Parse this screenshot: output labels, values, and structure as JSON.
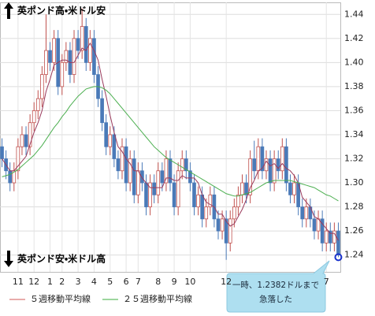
{
  "chart_data": {
    "type": "candlestick",
    "annotation_top": "英ポンド高・米ドル安",
    "annotation_bottom": "英ポンド安・米ドル高",
    "callout": [
      "一時、1.2382ドルまで",
      "急落した"
    ],
    "up_color": "#c0504d",
    "down_color": "#4a7ab8",
    "open": [
      1.33,
      1.32,
      1.31,
      1.3,
      1.31,
      1.33,
      1.34,
      1.33,
      1.35,
      1.36,
      1.37,
      1.39,
      1.41,
      1.4,
      1.42,
      1.38,
      1.4,
      1.41,
      1.39,
      1.42,
      1.41,
      1.43,
      1.4,
      1.42,
      1.39,
      1.37,
      1.35,
      1.33,
      1.34,
      1.32,
      1.31,
      1.33,
      1.3,
      1.32,
      1.29,
      1.31,
      1.3,
      1.28,
      1.3,
      1.29,
      1.31,
      1.3,
      1.32,
      1.3,
      1.28,
      1.31,
      1.32,
      1.31,
      1.3,
      1.28,
      1.29,
      1.27,
      1.28,
      1.29,
      1.27,
      1.26,
      1.27,
      1.25,
      1.27,
      1.28,
      1.29,
      1.3,
      1.29,
      1.32,
      1.31,
      1.33,
      1.31,
      1.32,
      1.3,
      1.32,
      1.31,
      1.33,
      1.3,
      1.29,
      1.3,
      1.28,
      1.27,
      1.28,
      1.27,
      1.26,
      1.27,
      1.25,
      1.26,
      1.25,
      1.26
    ],
    "high": [
      1.337,
      1.327,
      1.317,
      1.317,
      1.337,
      1.347,
      1.347,
      1.357,
      1.367,
      1.377,
      1.397,
      1.44,
      1.417,
      1.427,
      1.427,
      1.407,
      1.417,
      1.417,
      1.427,
      1.427,
      1.445,
      1.437,
      1.427,
      1.427,
      1.397,
      1.377,
      1.357,
      1.347,
      1.347,
      1.327,
      1.337,
      1.337,
      1.327,
      1.327,
      1.317,
      1.317,
      1.307,
      1.307,
      1.307,
      1.317,
      1.317,
      1.327,
      1.327,
      1.307,
      1.317,
      1.327,
      1.327,
      1.317,
      1.307,
      1.297,
      1.297,
      1.287,
      1.297,
      1.297,
      1.277,
      1.277,
      1.277,
      1.277,
      1.287,
      1.297,
      1.307,
      1.307,
      1.327,
      1.335,
      1.337,
      1.337,
      1.327,
      1.327,
      1.327,
      1.327,
      1.337,
      1.337,
      1.307,
      1.307,
      1.307,
      1.287,
      1.287,
      1.287,
      1.277,
      1.277,
      1.277,
      1.267,
      1.267,
      1.267,
      1.267
    ],
    "low": [
      1.313,
      1.303,
      1.293,
      1.293,
      1.303,
      1.323,
      1.323,
      1.323,
      1.343,
      1.353,
      1.363,
      1.383,
      1.393,
      1.393,
      1.373,
      1.373,
      1.393,
      1.383,
      1.383,
      1.403,
      1.403,
      1.393,
      1.393,
      1.383,
      1.363,
      1.343,
      1.323,
      1.323,
      1.313,
      1.303,
      1.303,
      1.293,
      1.293,
      1.283,
      1.283,
      1.293,
      1.273,
      1.273,
      1.283,
      1.283,
      1.293,
      1.293,
      1.293,
      1.273,
      1.273,
      1.303,
      1.303,
      1.293,
      1.273,
      1.273,
      1.263,
      1.263,
      1.273,
      1.263,
      1.253,
      1.253,
      1.236,
      1.243,
      1.263,
      1.273,
      1.283,
      1.283,
      1.283,
      1.303,
      1.303,
      1.303,
      1.303,
      1.293,
      1.293,
      1.303,
      1.303,
      1.293,
      1.283,
      1.283,
      1.273,
      1.263,
      1.263,
      1.263,
      1.253,
      1.253,
      1.243,
      1.243,
      1.243,
      1.243,
      1.2382
    ],
    "close": [
      1.32,
      1.31,
      1.3,
      1.31,
      1.33,
      1.34,
      1.33,
      1.35,
      1.36,
      1.37,
      1.39,
      1.41,
      1.4,
      1.42,
      1.38,
      1.4,
      1.41,
      1.39,
      1.42,
      1.41,
      1.43,
      1.4,
      1.42,
      1.39,
      1.37,
      1.35,
      1.33,
      1.34,
      1.32,
      1.31,
      1.33,
      1.3,
      1.32,
      1.29,
      1.31,
      1.3,
      1.28,
      1.3,
      1.29,
      1.31,
      1.3,
      1.32,
      1.3,
      1.28,
      1.31,
      1.32,
      1.31,
      1.3,
      1.28,
      1.29,
      1.27,
      1.28,
      1.29,
      1.27,
      1.26,
      1.27,
      1.25,
      1.27,
      1.28,
      1.29,
      1.3,
      1.29,
      1.32,
      1.31,
      1.33,
      1.31,
      1.32,
      1.3,
      1.32,
      1.31,
      1.33,
      1.3,
      1.29,
      1.3,
      1.28,
      1.27,
      1.28,
      1.27,
      1.26,
      1.27,
      1.25,
      1.26,
      1.25,
      1.26,
      1.24
    ],
    "series": [
      {
        "name": "５週移動平均線",
        "color": "#9a3a5c",
        "legend_color": "#e0908f",
        "values": [
          1.32,
          1.315,
          1.31,
          1.31,
          1.314,
          1.318,
          1.322,
          1.332,
          1.342,
          1.35,
          1.36,
          1.376,
          1.386,
          1.398,
          1.4,
          1.402,
          1.402,
          1.4,
          1.4,
          1.406,
          1.412,
          1.41,
          1.416,
          1.41,
          1.402,
          1.386,
          1.372,
          1.356,
          1.342,
          1.33,
          1.326,
          1.32,
          1.316,
          1.31,
          1.31,
          1.304,
          1.3,
          1.296,
          1.296,
          1.296,
          1.296,
          1.304,
          1.304,
          1.302,
          1.302,
          1.306,
          1.304,
          1.304,
          1.304,
          1.3,
          1.29,
          1.284,
          1.282,
          1.28,
          1.274,
          1.274,
          1.268,
          1.264,
          1.266,
          1.272,
          1.278,
          1.286,
          1.296,
          1.302,
          1.31,
          1.312,
          1.318,
          1.314,
          1.316,
          1.312,
          1.316,
          1.312,
          1.31,
          1.306,
          1.3,
          1.288,
          1.284,
          1.28,
          1.272,
          1.27,
          1.266,
          1.262,
          1.258,
          1.258,
          1.252
        ]
      },
      {
        "name": "２５週移動平均線",
        "color": "#4caf50",
        "legend_color": "#7dc87f",
        "values": [
          1.305,
          1.306,
          1.307,
          1.309,
          1.311,
          1.314,
          1.317,
          1.32,
          1.323,
          1.327,
          1.331,
          1.336,
          1.341,
          1.346,
          1.35,
          1.355,
          1.359,
          1.364,
          1.368,
          1.372,
          1.375,
          1.378,
          1.379,
          1.38,
          1.38,
          1.379,
          1.377,
          1.374,
          1.37,
          1.366,
          1.362,
          1.358,
          1.354,
          1.35,
          1.346,
          1.342,
          1.338,
          1.334,
          1.33,
          1.327,
          1.324,
          1.321,
          1.319,
          1.317,
          1.315,
          1.313,
          1.311,
          1.309,
          1.307,
          1.305,
          1.303,
          1.301,
          1.299,
          1.297,
          1.295,
          1.293,
          1.291,
          1.29,
          1.289,
          1.289,
          1.29,
          1.291,
          1.292,
          1.294,
          1.296,
          1.298,
          1.3,
          1.301,
          1.302,
          1.302,
          1.302,
          1.302,
          1.302,
          1.301,
          1.3,
          1.299,
          1.298,
          1.297,
          1.296,
          1.294,
          1.292,
          1.29,
          1.289,
          1.287,
          1.285
        ]
      }
    ],
    "xticks": [
      {
        "value": 4,
        "label": "11"
      },
      {
        "value": 8,
        "label": "12"
      },
      {
        "value": 12,
        "label": "1"
      },
      {
        "value": 15,
        "label": "2"
      },
      {
        "value": 19,
        "label": "3"
      },
      {
        "value": 23,
        "label": "4"
      },
      {
        "value": 27,
        "label": "5"
      },
      {
        "value": 31,
        "label": "6"
      },
      {
        "value": 34,
        "label": "7"
      },
      {
        "value": 39,
        "label": "8"
      },
      {
        "value": 43,
        "label": "9"
      },
      {
        "value": 47,
        "label": "10"
      },
      {
        "value": 56,
        "label": "12"
      },
      {
        "value": 81,
        "label": "7"
      }
    ],
    "ylim": [
      1.226,
      1.45
    ],
    "yticks": [
      1.24,
      1.26,
      1.28,
      {
        "value": 1.3,
        "label": "1.30"
      },
      1.32,
      1.34,
      1.36,
      1.38,
      {
        "value": 1.4,
        "label": "1.40"
      },
      1.42,
      1.44
    ],
    "grid": true
  }
}
